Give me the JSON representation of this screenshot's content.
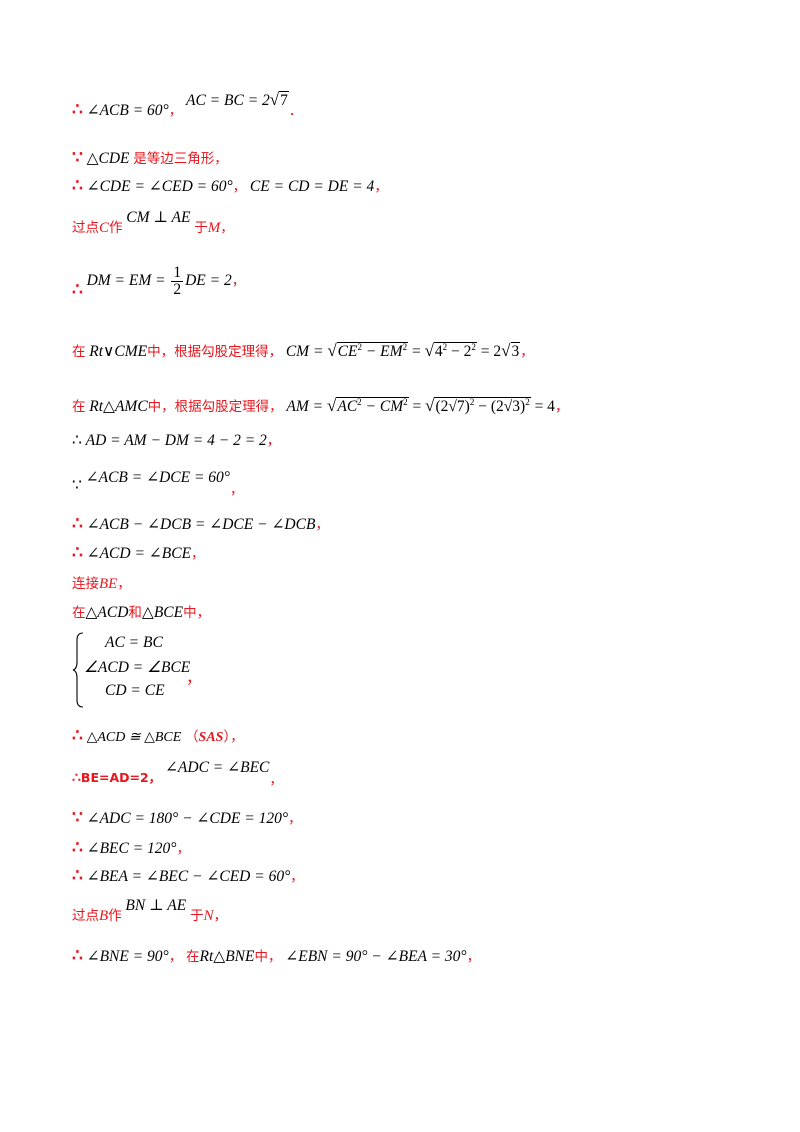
{
  "lines": {
    "l1": {
      "sym": "∴",
      "m1": "∠ACB = 60°",
      "p1": "，",
      "m2": "AC = BC = 2",
      "root": "7",
      "p2": "．"
    },
    "l2": {
      "sym": "∵",
      "m1": "△CDE",
      "t1": "是等边三角形，"
    },
    "l3": {
      "sym": "∴",
      "m1": "∠CDE = ∠CED = 60°",
      "p1": "，",
      "m2": "CE = CD = DE = 4",
      "p2": "，"
    },
    "l4": {
      "t1": "过点",
      "v1": "C",
      "t2": "作",
      "m1": "CM ⊥ AE",
      "t3": "于",
      "v2": "M",
      "p1": "，"
    },
    "l5": {
      "sym": "∴",
      "m1": "DM = EM =",
      "fn": "1",
      "fd": "2",
      "m2": "DE = 2",
      "p1": "，"
    },
    "l6": {
      "t1": "在",
      "m1": "Rt∨CME",
      "t2": "中，根据勾股定理得，",
      "m2": "CM =",
      "r1": "CE",
      "r1b": "− EM",
      "m3": "=",
      "r2": "4",
      "r2b": "− 2",
      "m4": "= 2",
      "r3": "3",
      "p1": "，"
    },
    "l7": {
      "t1": "在",
      "m1": "Rt△AMC",
      "t2": "中，根据勾股定理得，",
      "m2": "AM =",
      "r1": "AC",
      "r1b": "− CM",
      "m3": "=",
      "r2a": "(2",
      "r2r": "7",
      "r2b": ")",
      "r2c": " − (2",
      "r2s": "3",
      "r2d": ")",
      "m4": "= 4",
      "p1": "，"
    },
    "l8": {
      "sym": "∴",
      "m1": "AD = AM − DM = 4 − 2 = 2",
      "p1": "，"
    },
    "l9": {
      "sym": "∵",
      "m1": "∠ACB = ∠DCE = 60°",
      "p1": "，"
    },
    "l10": {
      "sym": "∴",
      "m1": "∠ACB − ∠DCB = ∠DCE − ∠DCB",
      "p1": "，"
    },
    "l11": {
      "sym": "∴",
      "m1": "∠ACD = ∠BCE",
      "p1": "，"
    },
    "l12": {
      "t1": "连接",
      "v1": "BE",
      "p1": "，"
    },
    "l13": {
      "t1": "在",
      "m1": "△ACD",
      "t2": "和",
      "m2": "△BCE",
      "t3": "中，"
    },
    "sys": {
      "e1": "AC = BC",
      "e2": "∠ACD = ∠BCE",
      "e3": "CD = CE",
      "p1": "，"
    },
    "l14": {
      "sym": "∴",
      "m1": "△ACD ≅ △BCE",
      "t1": "（",
      "v1": "SAS",
      "t2": "），"
    },
    "l15": {
      "sym": "∴",
      "t1": "BE=AD=2，",
      "m1": "∠ADC = ∠BEC",
      "p1": "，"
    },
    "l16": {
      "sym": "∵",
      "m1": "∠ADC = 180° − ∠CDE = 120°",
      "p1": "，"
    },
    "l17": {
      "sym": "∴",
      "m1": "∠BEC = 120°",
      "p1": "，"
    },
    "l18": {
      "sym": "∴",
      "m1": "∠BEA = ∠BEC − ∠CED = 60°",
      "p1": "，"
    },
    "l19": {
      "t1": "过点",
      "v1": "B",
      "t2": "作",
      "m1": "BN ⊥ AE",
      "t3": "于",
      "v2": "N",
      "p1": "，"
    },
    "l20": {
      "sym": "∴",
      "m1": "∠BNE = 90°",
      "p1": "，",
      "t1": "在",
      "m2": "Rt△BNE",
      "t2": "中，",
      "m3": "∠EBN = 90° − ∠BEA = 30°",
      "p2": "，"
    }
  },
  "colors": {
    "red": "#e8161e",
    "black": "#000000"
  }
}
